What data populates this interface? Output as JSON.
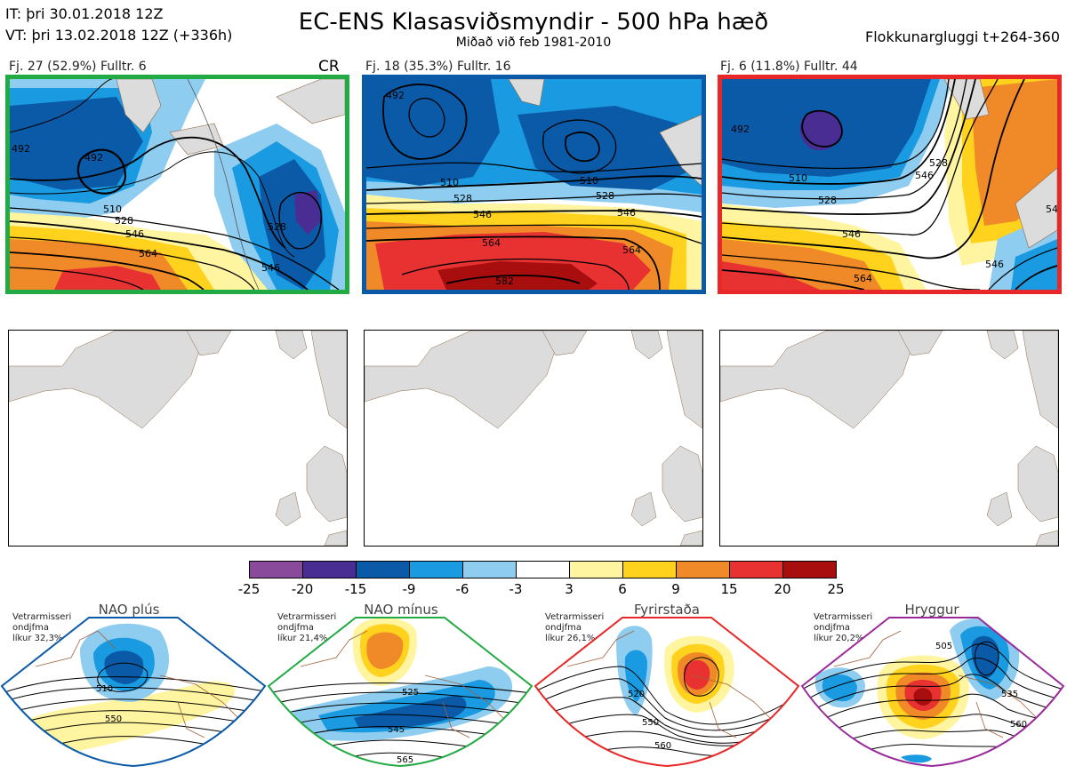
{
  "header": {
    "it_line": "IT: þri 30.01.2018 12Z",
    "vt_line": "VT: þri 13.02.2018 12Z  (+336h)",
    "title": "EC-ENS Klasasviðsmyndir - 500 hPa hæð",
    "subtitle": "Miðað við feb 1981-2010",
    "window": "Flokkunargluggi t+264-360"
  },
  "clusters": [
    {
      "label": "Fj. 27 (52.9%)   Fulltr. 6",
      "tag": "CR",
      "border_color": "#22aa44",
      "contour_labels": [
        "492",
        "492",
        "510",
        "528",
        "546",
        "564",
        "528",
        "546"
      ]
    },
    {
      "label": "Fj. 18 (35.3%)   Fulltr. 16",
      "tag": "",
      "border_color": "#0a5aa8",
      "contour_labels": [
        "492",
        "510",
        "528",
        "546",
        "564",
        "582",
        "510",
        "528",
        "546",
        "564"
      ]
    },
    {
      "label": "Fj. 6 (11.8%)   Fulltr. 44",
      "tag": "",
      "border_color": "#e82828",
      "contour_labels": [
        "492",
        "510",
        "528",
        "546",
        "564",
        "528",
        "546",
        "546",
        "54"
      ]
    }
  ],
  "colorbar": {
    "colors": [
      "#8a4a9c",
      "#4a2d92",
      "#0a5aa8",
      "#1a9ae0",
      "#8ecdf0",
      "#ffffff",
      "#fff5a0",
      "#ffd21e",
      "#f08a28",
      "#e83232",
      "#a80e0e"
    ],
    "ticks": [
      "-25",
      "-20",
      "-15",
      "-9",
      "-6",
      "-3",
      "3",
      "6",
      "9",
      "15",
      "20",
      "25"
    ]
  },
  "regimes": [
    {
      "name": "NAO plús",
      "note": "Vetrarmisseri\nondjfma\nlíkur 32,3%",
      "color": "#0a5aa8",
      "labels": [
        "510",
        "550"
      ]
    },
    {
      "name": "NAO mínus",
      "note": "Vetrarmisseri\nondjfma\nlíkur 21,4%",
      "color": "#22aa44",
      "labels": [
        "525",
        "545",
        "565"
      ]
    },
    {
      "name": "Fyrirstaða",
      "note": "Vetrarmisseri\nondjfma\nlíkur 26,1%",
      "color": "#e82828",
      "labels": [
        "520",
        "550",
        "560"
      ]
    },
    {
      "name": "Hryggur",
      "note": "Vetrarmisseri\nondjfma\nlíkur 20,2%",
      "color": "#9a2a9a",
      "labels": [
        "505",
        "535",
        "560"
      ],
      "dot_color": "#ee82ee"
    }
  ]
}
